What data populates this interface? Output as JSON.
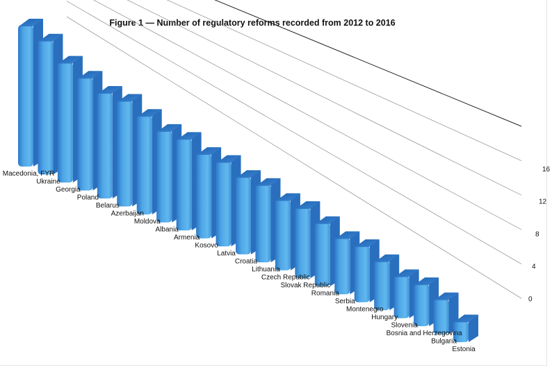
{
  "chart_data": {
    "type": "bar",
    "title": "Figure 1 — Number of regulatory reforms recorded from 2012 to 2016",
    "categories": [
      "Macedonia, FYR",
      "Ukraine",
      "Georgia",
      "Poland",
      "Belarus",
      "Azerbaijan",
      "Moldova",
      "Albania",
      "Armenia",
      "Kosovo",
      "Latvia",
      "Croatia",
      "Lithuania",
      "Czech Republic",
      "Slovak Republic",
      "Romania",
      "Serbia",
      "Montenegro",
      "Hungary",
      "Slovenia",
      "Bosnia and Herzegovina",
      "Bulgaria",
      "Estonia"
    ],
    "values": [
      20,
      19,
      17,
      16,
      15,
      15,
      14,
      13,
      13,
      12,
      12,
      11,
      11,
      10,
      10,
      9,
      8,
      8,
      7,
      6,
      6,
      5,
      3
    ],
    "yticks": [
      0,
      4,
      8,
      12,
      16
    ],
    "ylim": [
      0,
      20
    ],
    "grid": true,
    "style": "3d-bars",
    "bar_color_light": "#5fb4ea",
    "bar_color_dark": "#1b5fae",
    "bar_top_color": "#2f7fd0"
  }
}
